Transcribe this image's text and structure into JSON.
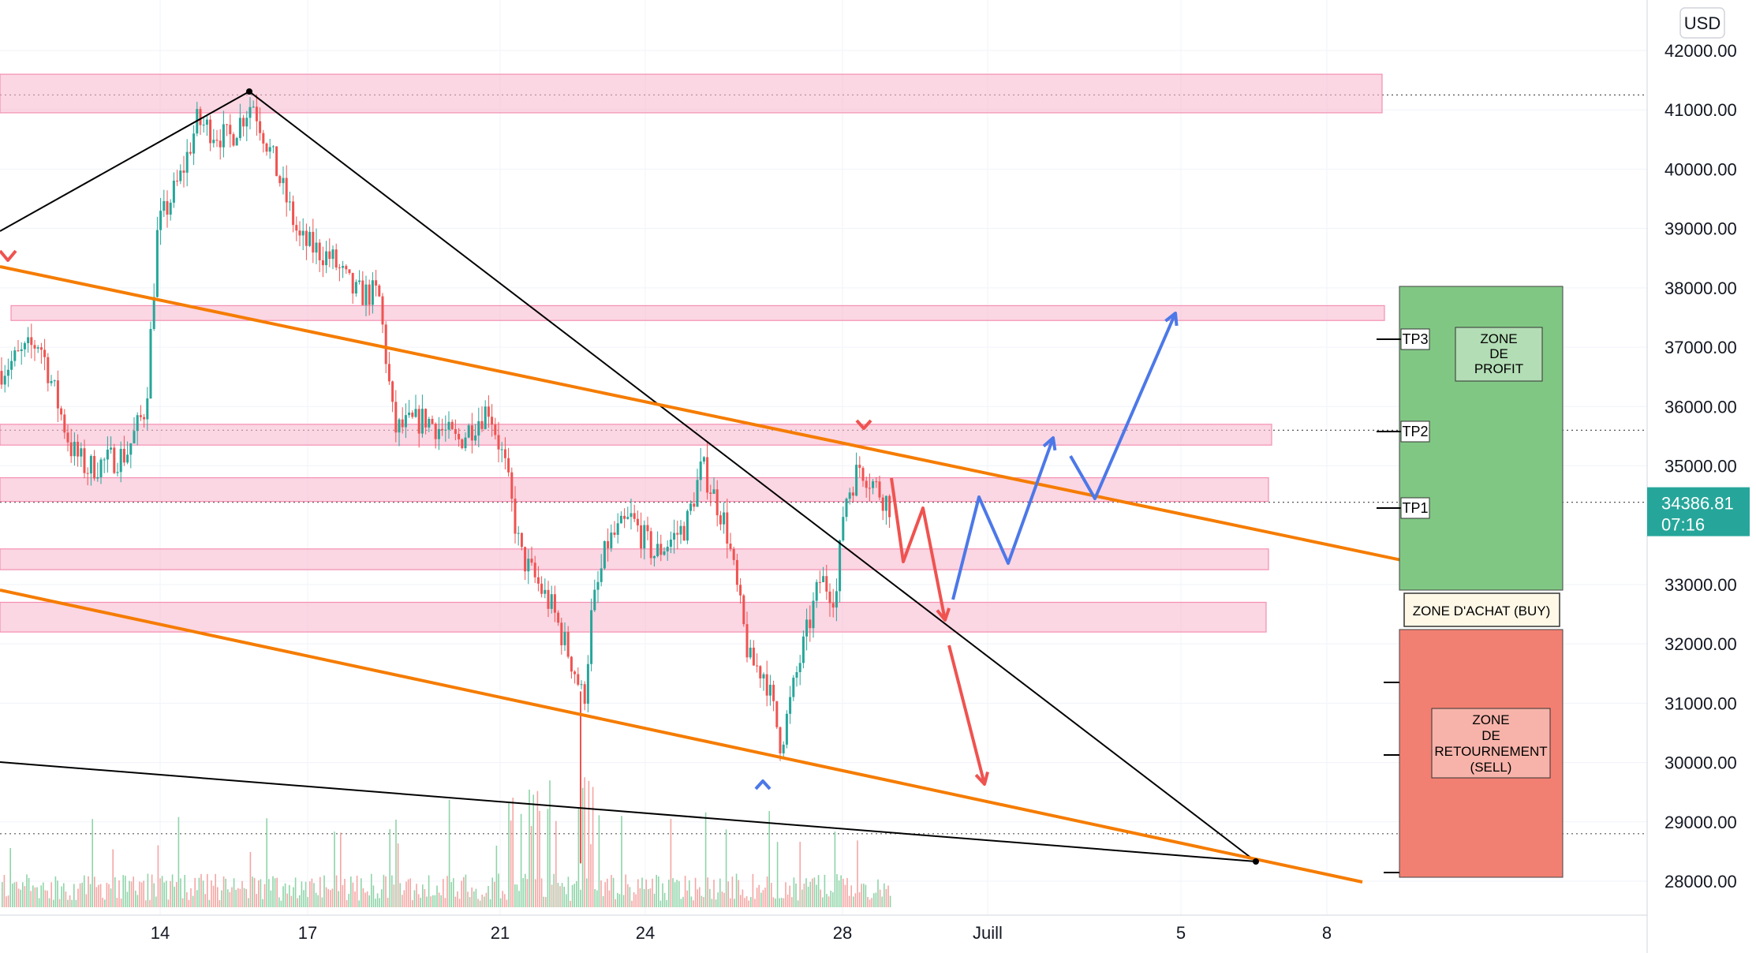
{
  "chart_data": {
    "type": "candlestick",
    "currency": "USD",
    "y_axis": {
      "ticks": [
        "42000.00",
        "41000.00",
        "40000.00",
        "39000.00",
        "38000.00",
        "37000.00",
        "36000.00",
        "35000.00",
        "33000.00",
        "32000.00",
        "31000.00",
        "30000.00",
        "29000.00",
        "28000.00"
      ],
      "tick_values": [
        42000,
        41000,
        40000,
        39000,
        38000,
        37000,
        36000,
        35000,
        33000,
        32000,
        31000,
        30000,
        29000,
        28000
      ]
    },
    "x_axis": {
      "ticks": [
        "14",
        "17",
        "21",
        "24",
        "28",
        "Juill",
        "5",
        "8"
      ]
    },
    "current_price": {
      "value": "34386.81",
      "countdown": "07:16"
    },
    "zones": [
      {
        "low": 40950,
        "high": 41600
      },
      {
        "low": 37450,
        "high": 37700
      },
      {
        "low": 35350,
        "high": 35700
      },
      {
        "low": 34400,
        "high": 34800
      },
      {
        "low": 33250,
        "high": 33600
      },
      {
        "low": 32200,
        "high": 32700
      }
    ],
    "annotations": {
      "tp3": "TP3",
      "tp2": "TP2",
      "tp1": "TP1",
      "profit_zone": [
        "ZONE",
        "DE",
        "PROFIT"
      ],
      "buy_zone": "ZONE D'ACHAT (BUY)",
      "sell_zone": [
        "ZONE",
        "DE",
        "RETOURNEMENT",
        "(SELL)"
      ]
    },
    "colors": {
      "up": "#26a69a",
      "down": "#ef5350",
      "zone_fill": "#f8bbd0",
      "trend_orange": "#f57c00",
      "trend_black": "#000000",
      "profit_green": "#81c784",
      "sell_red": "#f28072",
      "price_tag": "#26a69a",
      "arrow_blue": "#4c78e8",
      "arrow_red": "#ef5350"
    }
  }
}
